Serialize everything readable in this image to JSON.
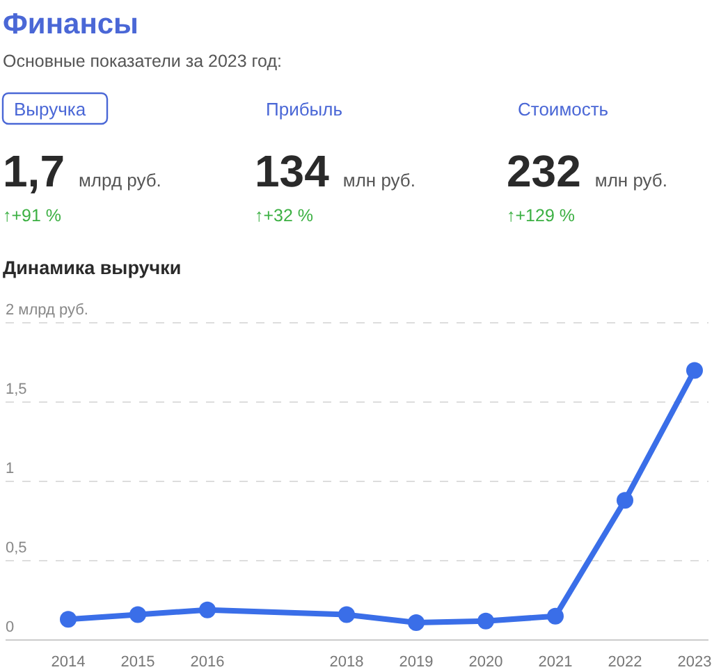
{
  "chart_data": [
    {
      "type": "other",
      "title": "Финансы",
      "subtitle": "Основные показатели за 2023 год:",
      "annotations": [
        "Выручка",
        "1,7",
        "млрд руб.",
        "↑+91 %",
        "Прибыль",
        "134",
        "млн руб.",
        "↑+32 %",
        "Стоимость",
        "232",
        "млн руб.",
        "↑+129 %"
      ]
    },
    {
      "type": "line",
      "title": "Динамика выручки",
      "x": [
        2014,
        2015,
        2016,
        2018,
        2019,
        2020,
        2021,
        2022,
        2023
      ],
      "series": [
        {
          "color": "#3a6ee8",
          "values": [
            0.13,
            0.16,
            0.19,
            0.16,
            0.11,
            0.12,
            0.15,
            0.88,
            1.7
          ]
        }
      ],
      "xlim": [
        2013.1,
        2023.2
      ],
      "xticks": [
        2014,
        2015,
        2016,
        2018,
        2019,
        2020,
        2021,
        2022,
        2023
      ],
      "ylim": [
        0,
        2
      ],
      "yticks": [
        0,
        {
          "value": 0.5,
          "label": "0,5"
        },
        1,
        {
          "value": 1.5,
          "label": "1,5"
        },
        {
          "value": 2,
          "label": "2 млрд руб."
        }
      ],
      "grid": "y",
      "marker": "circle",
      "line_style": "solid"
    }
  ]
}
